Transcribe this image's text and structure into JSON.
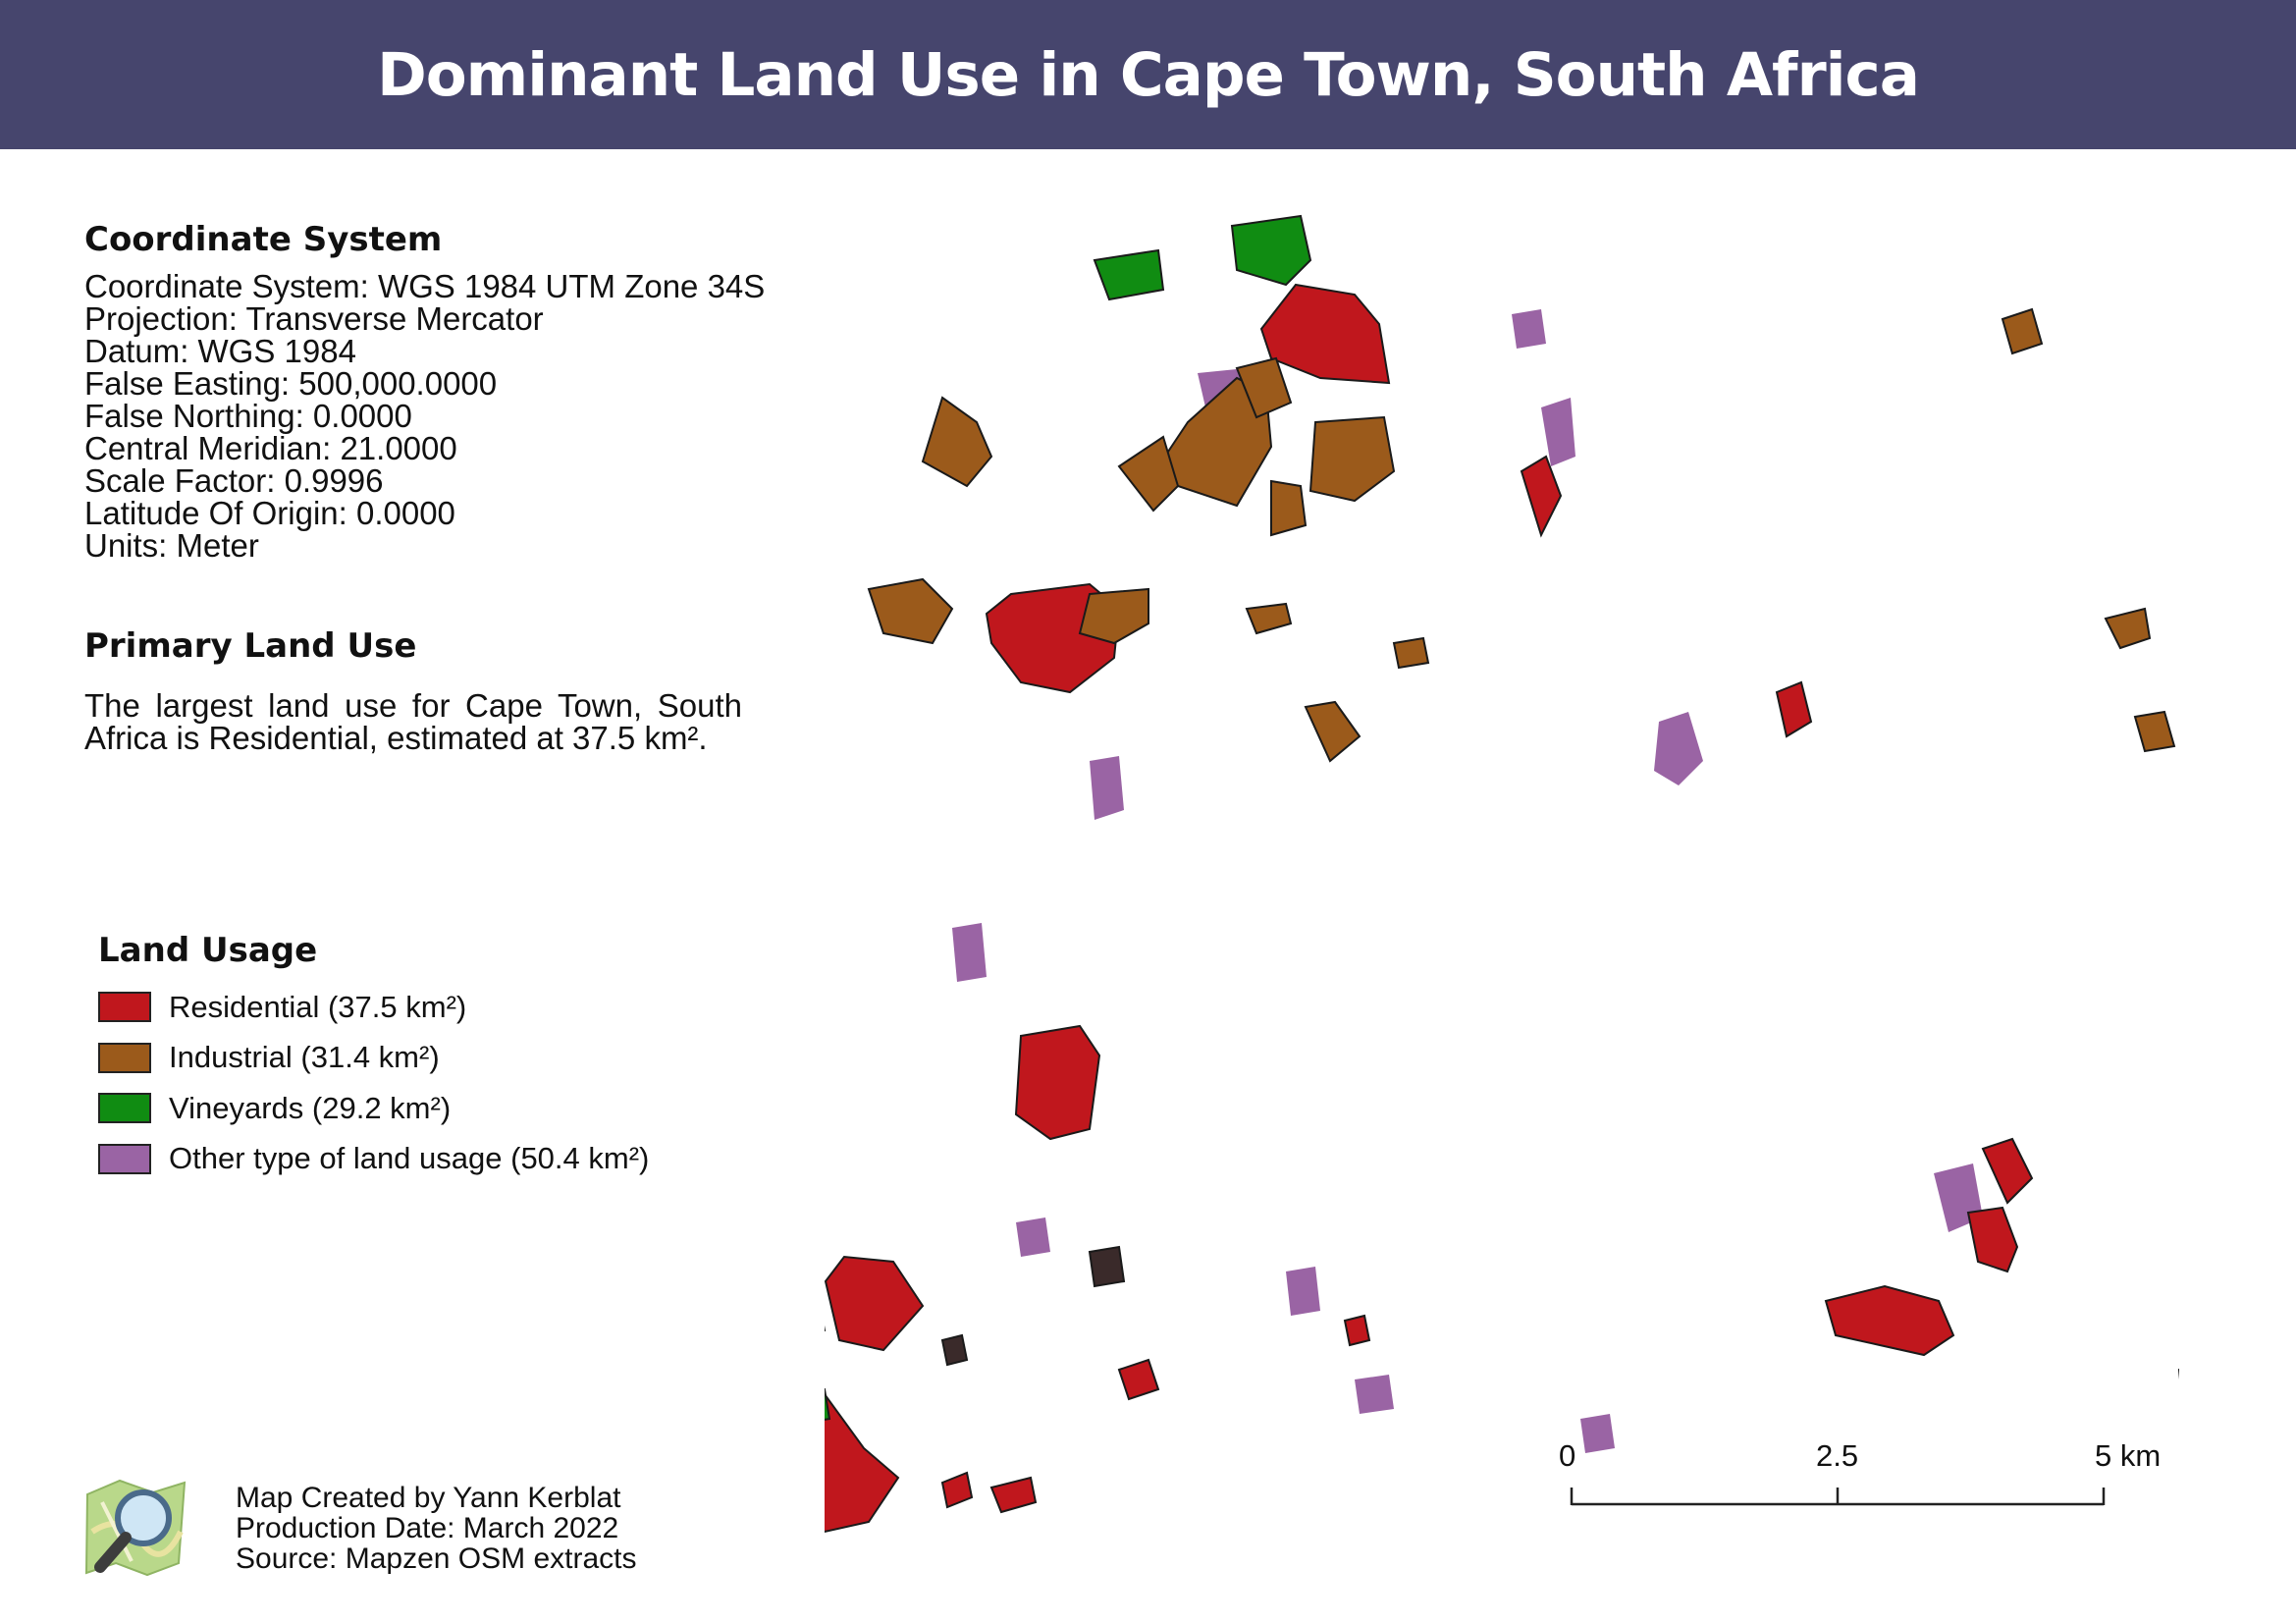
{
  "title": "Dominant Land Use in Cape Town,  South Africa",
  "coordinate_system": {
    "heading": "Coordinate System",
    "lines": [
      "Coordinate System: WGS 1984 UTM Zone 34S",
      "Projection: Transverse Mercator",
      "Datum: WGS 1984",
      "False Easting: 500,000.0000",
      "False Northing: 0.0000",
      "Central Meridian: 21.0000",
      "Scale Factor: 0.9996",
      "Latitude Of Origin: 0.0000",
      "Units: Meter"
    ]
  },
  "primary_land_use": {
    "heading": "Primary Land Use",
    "text": "The largest land use for Cape Town,  South Africa is Residential, estimated at 37.5 km²."
  },
  "legend": {
    "heading": "Land Usage",
    "items": [
      {
        "label": "Residential (37.5 km²)",
        "color": "#c0171d"
      },
      {
        "label": "Industrial (31.4 km²)",
        "color": "#9b5a1b"
      },
      {
        "label": "Vineyards (29.2 km²)",
        "color": "#108c12"
      },
      {
        "label": "Other type of land usage (50.4 km²)",
        "color": "#9a64a4"
      }
    ]
  },
  "credits": {
    "created_by": "Map Created by Yann Kerblat",
    "production_date": "Production Date: March 2022",
    "source": "Source: Mapzen OSM extracts"
  },
  "scale_bar": {
    "labels": [
      "0",
      "2.5",
      "5 km"
    ]
  },
  "logo_icon": "osm-magnifier-logo-icon"
}
